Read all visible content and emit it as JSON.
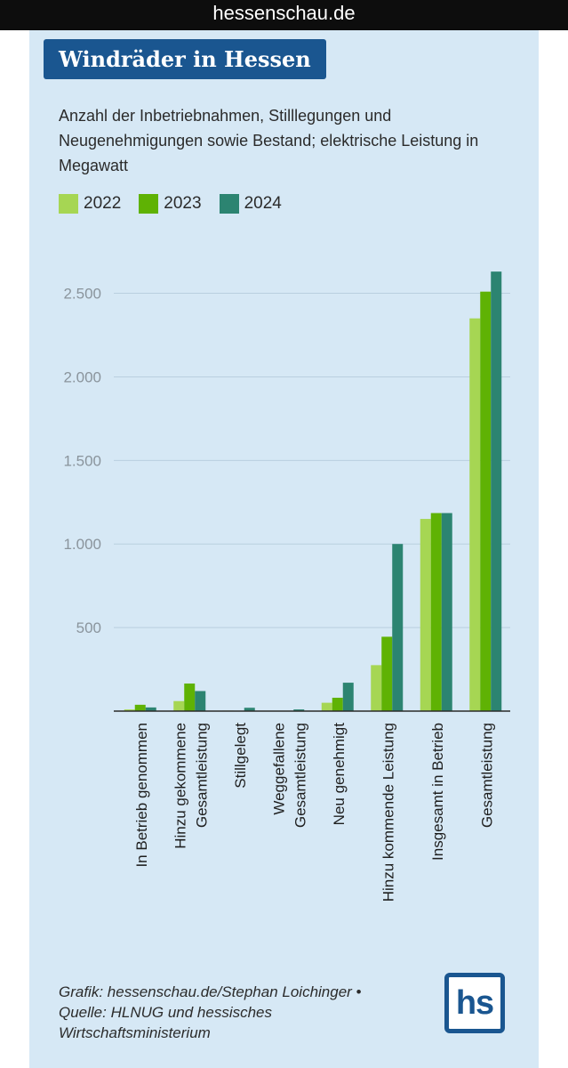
{
  "browser": {
    "url_label": "hessenschau.de"
  },
  "header": {
    "title": "Windräder in Hessen",
    "subtitle": "Anzahl der Inbetriebnahmen, Stilllegungen und Neugenehmigungen sowie Bestand; elektrische Leistung in Megawatt"
  },
  "footer": {
    "line1": "Grafik: hessenschau.de/Stephan Loichinger •",
    "line2": "Quelle: HLNUG und hessisches",
    "line3": "Wirtschaftsministerium"
  },
  "logo": {
    "text": "hs"
  },
  "colors": {
    "2022": "#a6d653",
    "2023": "#5fb204",
    "2024": "#2c8471"
  },
  "chart_data": {
    "type": "bar",
    "categories": [
      [
        "In Betrieb genommen"
      ],
      [
        "Hinzu gekommene",
        "Gesamtleistung"
      ],
      [
        "Stillgelegt"
      ],
      [
        "Weggefallene",
        "Gesamtleistung"
      ],
      [
        "Neu genehmigt"
      ],
      [
        "Hinzu kommende Leistung"
      ],
      [
        "Insgesamt in Betrieb"
      ],
      [
        "Gesamtleistung"
      ]
    ],
    "series": [
      {
        "name": "2022",
        "values": [
          10,
          60,
          3,
          2,
          50,
          275,
          1150,
          2350
        ]
      },
      {
        "name": "2023",
        "values": [
          38,
          165,
          2,
          2,
          80,
          445,
          1185,
          2510
        ]
      },
      {
        "name": "2024",
        "values": [
          22,
          120,
          20,
          10,
          170,
          1000,
          1185,
          2630
        ]
      }
    ],
    "ylim": [
      0,
      2700
    ],
    "yticks": [
      500,
      1000,
      1500,
      2000,
      2500
    ],
    "ytick_labels": [
      "500",
      "1.000",
      "1.500",
      "2.000",
      "2.500"
    ],
    "grid": true,
    "legend": "top-left",
    "xlabel": "",
    "ylabel": ""
  }
}
